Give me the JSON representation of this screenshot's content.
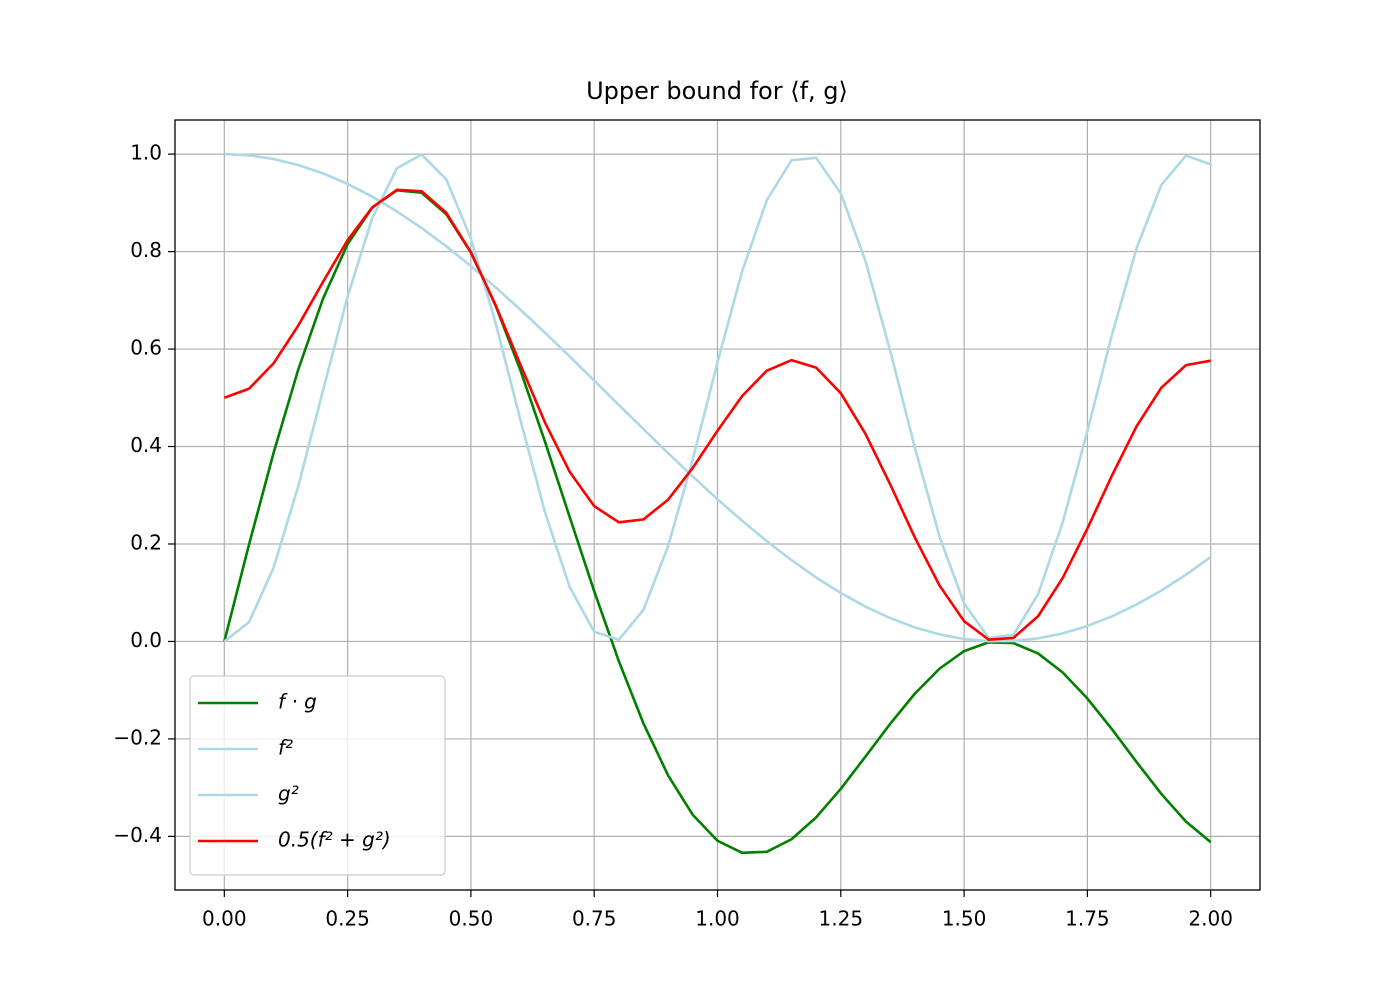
{
  "chart_data": {
    "type": "line",
    "title": "Upper bound for ⟨f, g⟩",
    "x": [
      0,
      0.05,
      0.1,
      0.15,
      0.2,
      0.25,
      0.3,
      0.35,
      0.4,
      0.45,
      0.5,
      0.55,
      0.6,
      0.65,
      0.7,
      0.75,
      0.8,
      0.85,
      0.9,
      0.95,
      1.0,
      1.05,
      1.1,
      1.15,
      1.2,
      1.25,
      1.3,
      1.35,
      1.4,
      1.45,
      1.5,
      1.55,
      1.6,
      1.65,
      1.7,
      1.75,
      1.8,
      1.85,
      1.9,
      1.95,
      2.0
    ],
    "series": [
      {
        "name": "f · g",
        "color": "#008000",
        "values": [
          0,
          0.1985,
          0.3875,
          0.5583,
          0.7031,
          0.8153,
          0.8904,
          0.9257,
          0.9207,
          0.8769,
          0.798,
          0.6893,
          0.5575,
          0.4104,
          0.2562,
          0.1032,
          -0.0407,
          -0.1686,
          -0.2751,
          -0.3559,
          -0.4089,
          -0.4337,
          -0.4316,
          -0.4059,
          -0.361,
          -0.3024,
          -0.2363,
          -0.1693,
          -0.1073,
          -0.056,
          -0.0198,
          -0.0017,
          -0.0034,
          -0.0246,
          -0.0637,
          -0.1171,
          -0.1803,
          -0.2477,
          -0.3129,
          -0.3696,
          -0.4117
        ]
      },
      {
        "name": "f²",
        "color": "#add8e6",
        "values": [
          0,
          0.0395,
          0.1516,
          0.3188,
          0.5147,
          0.7081,
          0.8686,
          0.971,
          0.9992,
          0.9483,
          0.8268,
          0.6537,
          0.4563,
          0.2657,
          0.1122,
          0.0199,
          0.0034,
          0.0653,
          0.1958,
          0.3744,
          0.5728,
          0.7597,
          0.9055,
          0.9874,
          0.9924,
          0.9195,
          0.7806,
          0.5972,
          0.3985,
          0.2159,
          0.0781,
          0.0069,
          0.0136,
          0.097,
          0.2441,
          0.4316,
          0.63,
          0.8077,
          0.9368,
          0.997,
          0.9789
        ]
      },
      {
        "name": "g²",
        "color": "#add8e6",
        "values": [
          1,
          0.9975,
          0.99,
          0.9777,
          0.9605,
          0.9388,
          0.9127,
          0.8824,
          0.8484,
          0.8108,
          0.7702,
          0.7268,
          0.6812,
          0.6337,
          0.585,
          0.5354,
          0.4854,
          0.4356,
          0.3864,
          0.3384,
          0.2919,
          0.2476,
          0.2058,
          0.1669,
          0.1313,
          0.0994,
          0.0716,
          0.048,
          0.0289,
          0.0145,
          0.005,
          0.0004,
          0.0009,
          0.0063,
          0.0166,
          0.0318,
          0.0516,
          0.076,
          0.1045,
          0.137,
          0.1732
        ]
      },
      {
        "name": "0.5(f² + g²)",
        "color": "#ff0000",
        "values": [
          0.5,
          0.5185,
          0.5708,
          0.6483,
          0.7376,
          0.8235,
          0.8907,
          0.9267,
          0.9238,
          0.8796,
          0.7985,
          0.6903,
          0.5688,
          0.4497,
          0.3486,
          0.2777,
          0.2444,
          0.2505,
          0.2911,
          0.3564,
          0.4324,
          0.5037,
          0.5557,
          0.5772,
          0.5619,
          0.5095,
          0.4261,
          0.3226,
          0.2137,
          0.1152,
          0.0416,
          0.0037,
          0.0073,
          0.0517,
          0.1304,
          0.2317,
          0.3408,
          0.4419,
          0.5207,
          0.567,
          0.5761
        ]
      }
    ],
    "xlim": [
      -0.1,
      2.1
    ],
    "ylim": [
      -0.51,
      1.07
    ],
    "xticks": [
      {
        "value": 0,
        "label": "0.00"
      },
      {
        "value": 0.25,
        "label": "0.25"
      },
      {
        "value": 0.5,
        "label": "0.50"
      },
      {
        "value": 0.75,
        "label": "0.75"
      },
      {
        "value": 1,
        "label": "1.00"
      },
      {
        "value": 1.25,
        "label": "1.25"
      },
      {
        "value": 1.5,
        "label": "1.50"
      },
      {
        "value": 1.75,
        "label": "1.75"
      },
      {
        "value": 2,
        "label": "2.00"
      }
    ],
    "yticks": [
      {
        "value": -0.4,
        "label": "−0.4"
      },
      {
        "value": -0.2,
        "label": "−0.2"
      },
      {
        "value": 0,
        "label": "0.0"
      },
      {
        "value": 0.2,
        "label": "0.2"
      },
      {
        "value": 0.4,
        "label": "0.4"
      },
      {
        "value": 0.6,
        "label": "0.6"
      },
      {
        "value": 0.8,
        "label": "0.8"
      },
      {
        "value": 1,
        "label": "1.0"
      }
    ],
    "grid": true,
    "legend": "lower left"
  }
}
